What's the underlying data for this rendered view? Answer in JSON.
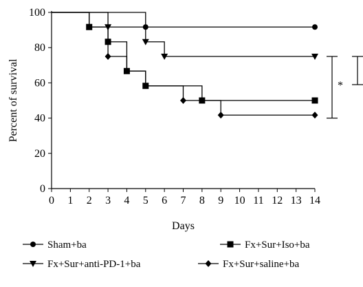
{
  "chart_data": {
    "type": "line",
    "step": true,
    "xlabel": "Days",
    "ylabel": "Percent of survival",
    "xlim": [
      0,
      14
    ],
    "ylim": [
      0,
      100
    ],
    "x_ticks": [
      0,
      1,
      2,
      3,
      4,
      5,
      6,
      7,
      8,
      9,
      10,
      11,
      12,
      13,
      14
    ],
    "x_tick_labels": [
      "0",
      "1",
      "2",
      "3",
      "4",
      "5",
      "6",
      "7",
      "8",
      "9",
      "10",
      "11",
      "12",
      "13",
      "14"
    ],
    "y_ticks": [
      0,
      20,
      40,
      60,
      80,
      100
    ],
    "y_tick_labels": [
      "0",
      "20",
      "40",
      "60",
      "80",
      "100"
    ],
    "grid": false,
    "legend_position": "bottom",
    "color": "#000000",
    "series": [
      {
        "name": "Sham+ba",
        "marker": "circle",
        "points": [
          [
            0,
            100
          ],
          [
            5,
            100
          ],
          [
            5,
            91.7
          ],
          [
            14,
            91.7
          ]
        ],
        "markers": [
          [
            5,
            91.7
          ],
          [
            14,
            91.7
          ]
        ]
      },
      {
        "name": "Fx+Sur+Iso+ba",
        "marker": "square",
        "points": [
          [
            0,
            100
          ],
          [
            2,
            100
          ],
          [
            2,
            91.7
          ],
          [
            3,
            91.7
          ],
          [
            3,
            83.3
          ],
          [
            4,
            83.3
          ],
          [
            4,
            66.7
          ],
          [
            5,
            66.7
          ],
          [
            5,
            58.3
          ],
          [
            8,
            58.3
          ],
          [
            8,
            50
          ],
          [
            14,
            50
          ]
        ],
        "markers": [
          [
            2,
            91.7
          ],
          [
            3,
            83.3
          ],
          [
            4,
            66.7
          ],
          [
            5,
            58.3
          ],
          [
            8,
            50
          ],
          [
            14,
            50
          ]
        ]
      },
      {
        "name": "Fx+Sur+anti-PD-1+ba",
        "marker": "triangle-down",
        "points": [
          [
            0,
            100
          ],
          [
            3,
            100
          ],
          [
            3,
            91.7
          ],
          [
            5,
            91.7
          ],
          [
            5,
            83.3
          ],
          [
            6,
            83.3
          ],
          [
            6,
            75
          ],
          [
            14,
            75
          ]
        ],
        "markers": [
          [
            3,
            91.7
          ],
          [
            5,
            83.3
          ],
          [
            6,
            75
          ],
          [
            14,
            75
          ]
        ]
      },
      {
        "name": "Fx+Sur+saline+ba",
        "marker": "diamond",
        "points": [
          [
            0,
            100
          ],
          [
            2,
            100
          ],
          [
            2,
            91.7
          ],
          [
            3,
            91.7
          ],
          [
            3,
            75
          ],
          [
            4,
            75
          ],
          [
            4,
            66.7
          ],
          [
            5,
            66.7
          ],
          [
            5,
            58.3
          ],
          [
            7,
            58.3
          ],
          [
            7,
            50
          ],
          [
            9,
            50
          ],
          [
            9,
            41.7
          ],
          [
            14,
            41.7
          ]
        ],
        "markers": [
          [
            3,
            75
          ],
          [
            7,
            50
          ],
          [
            9,
            41.7
          ],
          [
            14,
            41.7
          ]
        ]
      }
    ],
    "annotations": [
      {
        "text": "*",
        "bracket_y": [
          75,
          40
        ]
      },
      {
        "text": "",
        "bracket_y": [
          75,
          59
        ]
      }
    ]
  }
}
